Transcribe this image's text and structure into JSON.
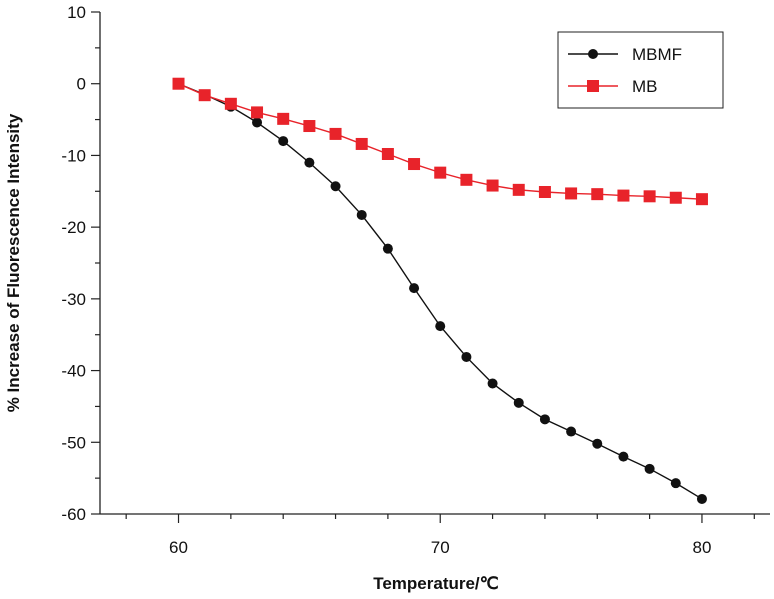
{
  "chart_data": {
    "type": "line",
    "title": "",
    "xlabel": "Temperature/℃",
    "ylabel": "% Increase of Fluorescence Intensity",
    "xlim": [
      57,
      82.6
    ],
    "ylim": [
      -60,
      10
    ],
    "xticks": [
      60,
      70,
      80
    ],
    "yticks": [
      10,
      0,
      -10,
      -20,
      -30,
      -40,
      -50,
      -60
    ],
    "grid": false,
    "legend_position": "top-right",
    "x": [
      60,
      61,
      62,
      63,
      64,
      65,
      66,
      67,
      68,
      69,
      70,
      71,
      72,
      73,
      74,
      75,
      76,
      77,
      78,
      79,
      80
    ],
    "series": [
      {
        "name": "MBMF",
        "marker": "circle",
        "color": "#111111",
        "values": [
          0,
          -1.5,
          -3.2,
          -5.4,
          -8.0,
          -11.0,
          -14.3,
          -18.3,
          -23.0,
          -28.5,
          -33.8,
          -38.1,
          -41.8,
          -44.5,
          -46.8,
          -48.5,
          -50.2,
          -52.0,
          -53.7,
          -55.7,
          -57.9
        ]
      },
      {
        "name": "MB",
        "marker": "square",
        "color": "#e8232a",
        "values": [
          0,
          -1.6,
          -2.8,
          -4.0,
          -4.9,
          -5.9,
          -7.0,
          -8.4,
          -9.8,
          -11.2,
          -12.4,
          -13.4,
          -14.2,
          -14.8,
          -15.1,
          -15.3,
          -15.4,
          -15.6,
          -15.7,
          -15.9,
          -16.1
        ]
      }
    ]
  }
}
